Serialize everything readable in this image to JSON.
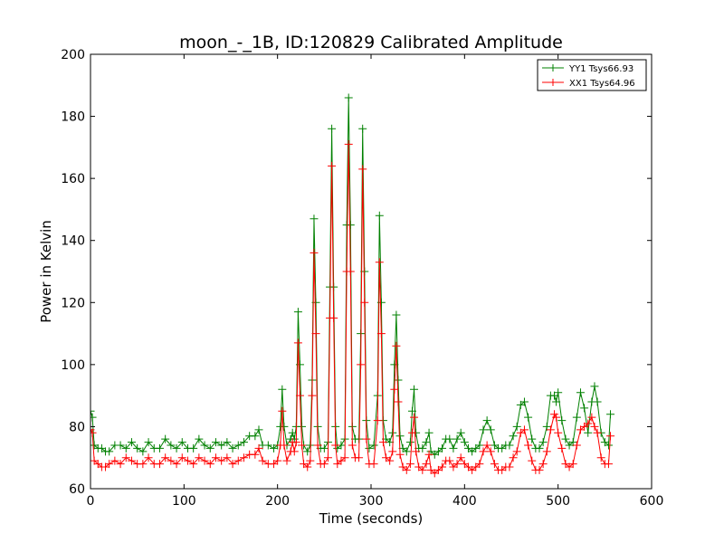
{
  "chart_data": {
    "type": "line",
    "title": "moon_-_1B, ID:120829 Calibrated Amplitude",
    "xlabel": "Time (seconds)",
    "ylabel": "Power in Kelvin",
    "xlim": [
      0,
      600
    ],
    "ylim": [
      60,
      200
    ],
    "xticks": [
      0,
      100,
      200,
      300,
      400,
      500,
      600
    ],
    "yticks": [
      60,
      80,
      100,
      120,
      140,
      160,
      180,
      200
    ],
    "grid": false,
    "legend_position": "top-right",
    "marker": "plus",
    "series": [
      {
        "name": "YY1 Tsys66.93",
        "color": "#008000",
        "points": [
          [
            0,
            85
          ],
          [
            2,
            83
          ],
          [
            4,
            74
          ],
          [
            8,
            73
          ],
          [
            12,
            73
          ],
          [
            16,
            72
          ],
          [
            20,
            72
          ],
          [
            26,
            74
          ],
          [
            32,
            74
          ],
          [
            38,
            73
          ],
          [
            44,
            75
          ],
          [
            50,
            73
          ],
          [
            56,
            72
          ],
          [
            62,
            75
          ],
          [
            68,
            73
          ],
          [
            74,
            73
          ],
          [
            80,
            76
          ],
          [
            86,
            74
          ],
          [
            92,
            73
          ],
          [
            98,
            75
          ],
          [
            104,
            73
          ],
          [
            110,
            73
          ],
          [
            116,
            76
          ],
          [
            122,
            74
          ],
          [
            128,
            73
          ],
          [
            134,
            75
          ],
          [
            140,
            74
          ],
          [
            146,
            75
          ],
          [
            152,
            73
          ],
          [
            158,
            74
          ],
          [
            164,
            75
          ],
          [
            170,
            77
          ],
          [
            176,
            77
          ],
          [
            180,
            79
          ],
          [
            184,
            74
          ],
          [
            190,
            74
          ],
          [
            196,
            73
          ],
          [
            200,
            74
          ],
          [
            203,
            80
          ],
          [
            205,
            92
          ],
          [
            207,
            80
          ],
          [
            210,
            74
          ],
          [
            214,
            76
          ],
          [
            216,
            78
          ],
          [
            218,
            76
          ],
          [
            220,
            80
          ],
          [
            222,
            117
          ],
          [
            224,
            100
          ],
          [
            226,
            80
          ],
          [
            228,
            74
          ],
          [
            232,
            72
          ],
          [
            235,
            74
          ],
          [
            237,
            95
          ],
          [
            239,
            147
          ],
          [
            241,
            120
          ],
          [
            243,
            80
          ],
          [
            246,
            73
          ],
          [
            250,
            73
          ],
          [
            254,
            75
          ],
          [
            256,
            125
          ],
          [
            258,
            176
          ],
          [
            260,
            125
          ],
          [
            262,
            80
          ],
          [
            264,
            73
          ],
          [
            268,
            74
          ],
          [
            272,
            76
          ],
          [
            274,
            145
          ],
          [
            276,
            186
          ],
          [
            278,
            145
          ],
          [
            280,
            80
          ],
          [
            283,
            76
          ],
          [
            287,
            76
          ],
          [
            289,
            110
          ],
          [
            291,
            176
          ],
          [
            293,
            130
          ],
          [
            295,
            82
          ],
          [
            298,
            73
          ],
          [
            303,
            74
          ],
          [
            307,
            90
          ],
          [
            309,
            148
          ],
          [
            311,
            120
          ],
          [
            313,
            82
          ],
          [
            316,
            76
          ],
          [
            320,
            75
          ],
          [
            323,
            78
          ],
          [
            325,
            100
          ],
          [
            327,
            116
          ],
          [
            329,
            95
          ],
          [
            331,
            77
          ],
          [
            334,
            73
          ],
          [
            338,
            72
          ],
          [
            342,
            75
          ],
          [
            344,
            85
          ],
          [
            346,
            92
          ],
          [
            348,
            78
          ],
          [
            351,
            73
          ],
          [
            355,
            73
          ],
          [
            359,
            75
          ],
          [
            362,
            78
          ],
          [
            364,
            72
          ],
          [
            368,
            71
          ],
          [
            372,
            72
          ],
          [
            376,
            73
          ],
          [
            380,
            76
          ],
          [
            384,
            76
          ],
          [
            388,
            73
          ],
          [
            392,
            76
          ],
          [
            396,
            78
          ],
          [
            400,
            75
          ],
          [
            404,
            73
          ],
          [
            408,
            72
          ],
          [
            412,
            73
          ],
          [
            416,
            74
          ],
          [
            420,
            79
          ],
          [
            424,
            82
          ],
          [
            428,
            79
          ],
          [
            432,
            74
          ],
          [
            436,
            73
          ],
          [
            440,
            73
          ],
          [
            444,
            74
          ],
          [
            448,
            74
          ],
          [
            452,
            77
          ],
          [
            456,
            80
          ],
          [
            460,
            87
          ],
          [
            464,
            88
          ],
          [
            468,
            83
          ],
          [
            472,
            76
          ],
          [
            476,
            73
          ],
          [
            480,
            73
          ],
          [
            484,
            75
          ],
          [
            488,
            80
          ],
          [
            492,
            90
          ],
          [
            496,
            90
          ],
          [
            498,
            88
          ],
          [
            500,
            91
          ],
          [
            504,
            82
          ],
          [
            508,
            76
          ],
          [
            512,
            74
          ],
          [
            516,
            75
          ],
          [
            520,
            83
          ],
          [
            524,
            91
          ],
          [
            528,
            86
          ],
          [
            532,
            78
          ],
          [
            536,
            88
          ],
          [
            539,
            93
          ],
          [
            542,
            88
          ],
          [
            546,
            78
          ],
          [
            550,
            75
          ],
          [
            554,
            74
          ],
          [
            556,
            84
          ]
        ]
      },
      {
        "name": "XX1 Tsys64.96",
        "color": "#ff0000",
        "points": [
          [
            0,
            79
          ],
          [
            2,
            78
          ],
          [
            4,
            69
          ],
          [
            8,
            68
          ],
          [
            12,
            67
          ],
          [
            16,
            67
          ],
          [
            20,
            68
          ],
          [
            26,
            69
          ],
          [
            32,
            68
          ],
          [
            38,
            70
          ],
          [
            44,
            69
          ],
          [
            50,
            68
          ],
          [
            56,
            68
          ],
          [
            62,
            70
          ],
          [
            68,
            68
          ],
          [
            74,
            68
          ],
          [
            80,
            70
          ],
          [
            86,
            69
          ],
          [
            92,
            68
          ],
          [
            98,
            70
          ],
          [
            104,
            69
          ],
          [
            110,
            68
          ],
          [
            116,
            70
          ],
          [
            122,
            69
          ],
          [
            128,
            68
          ],
          [
            134,
            70
          ],
          [
            140,
            69
          ],
          [
            146,
            70
          ],
          [
            152,
            68
          ],
          [
            158,
            69
          ],
          [
            164,
            70
          ],
          [
            170,
            71
          ],
          [
            176,
            71
          ],
          [
            180,
            73
          ],
          [
            184,
            69
          ],
          [
            190,
            68
          ],
          [
            196,
            68
          ],
          [
            200,
            69
          ],
          [
            203,
            74
          ],
          [
            205,
            85
          ],
          [
            207,
            74
          ],
          [
            210,
            69
          ],
          [
            214,
            72
          ],
          [
            216,
            75
          ],
          [
            218,
            72
          ],
          [
            220,
            75
          ],
          [
            222,
            107
          ],
          [
            224,
            90
          ],
          [
            226,
            74
          ],
          [
            228,
            68
          ],
          [
            232,
            67
          ],
          [
            235,
            69
          ],
          [
            237,
            90
          ],
          [
            239,
            136
          ],
          [
            241,
            110
          ],
          [
            243,
            74
          ],
          [
            246,
            68
          ],
          [
            250,
            68
          ],
          [
            254,
            70
          ],
          [
            256,
            115
          ],
          [
            258,
            164
          ],
          [
            260,
            115
          ],
          [
            262,
            74
          ],
          [
            264,
            68
          ],
          [
            268,
            69
          ],
          [
            272,
            70
          ],
          [
            274,
            130
          ],
          [
            276,
            171
          ],
          [
            278,
            130
          ],
          [
            280,
            74
          ],
          [
            283,
            70
          ],
          [
            287,
            70
          ],
          [
            289,
            100
          ],
          [
            291,
            163
          ],
          [
            293,
            120
          ],
          [
            295,
            76
          ],
          [
            298,
            68
          ],
          [
            303,
            68
          ],
          [
            307,
            82
          ],
          [
            309,
            133
          ],
          [
            311,
            110
          ],
          [
            313,
            75
          ],
          [
            316,
            70
          ],
          [
            320,
            69
          ],
          [
            323,
            72
          ],
          [
            325,
            92
          ],
          [
            327,
            106
          ],
          [
            329,
            88
          ],
          [
            331,
            71
          ],
          [
            334,
            67
          ],
          [
            338,
            66
          ],
          [
            342,
            68
          ],
          [
            344,
            78
          ],
          [
            346,
            83
          ],
          [
            348,
            72
          ],
          [
            351,
            67
          ],
          [
            355,
            66
          ],
          [
            359,
            68
          ],
          [
            362,
            71
          ],
          [
            364,
            66
          ],
          [
            368,
            65
          ],
          [
            372,
            66
          ],
          [
            376,
            67
          ],
          [
            380,
            69
          ],
          [
            384,
            69
          ],
          [
            388,
            67
          ],
          [
            392,
            68
          ],
          [
            396,
            70
          ],
          [
            400,
            68
          ],
          [
            404,
            67
          ],
          [
            408,
            66
          ],
          [
            412,
            67
          ],
          [
            416,
            68
          ],
          [
            420,
            72
          ],
          [
            424,
            74
          ],
          [
            428,
            72
          ],
          [
            432,
            68
          ],
          [
            436,
            66
          ],
          [
            440,
            66
          ],
          [
            444,
            67
          ],
          [
            448,
            67
          ],
          [
            452,
            70
          ],
          [
            456,
            72
          ],
          [
            460,
            78
          ],
          [
            464,
            79
          ],
          [
            468,
            74
          ],
          [
            472,
            69
          ],
          [
            476,
            66
          ],
          [
            480,
            66
          ],
          [
            484,
            68
          ],
          [
            488,
            72
          ],
          [
            492,
            79
          ],
          [
            496,
            84
          ],
          [
            498,
            83
          ],
          [
            500,
            78
          ],
          [
            504,
            73
          ],
          [
            508,
            68
          ],
          [
            512,
            67
          ],
          [
            516,
            68
          ],
          [
            520,
            74
          ],
          [
            524,
            79
          ],
          [
            528,
            80
          ],
          [
            532,
            81
          ],
          [
            536,
            83
          ],
          [
            539,
            80
          ],
          [
            542,
            78
          ],
          [
            546,
            70
          ],
          [
            550,
            68
          ],
          [
            554,
            68
          ],
          [
            556,
            77
          ]
        ]
      }
    ]
  }
}
